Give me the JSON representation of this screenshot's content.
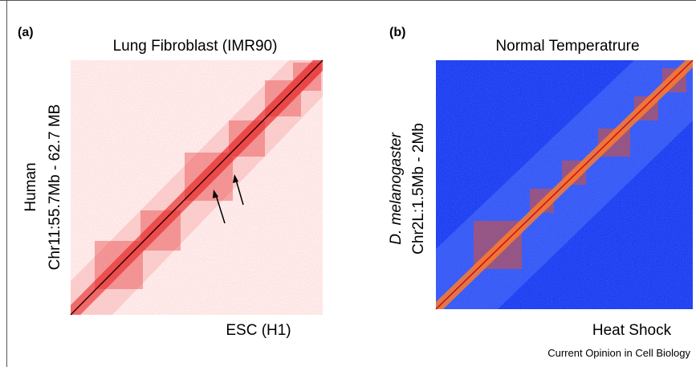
{
  "panels": [
    {
      "label": "(a)",
      "title": "Lung Fibroblast (IMR90)",
      "y_labels": [
        "Human",
        "Chr11:55.7Mb - 62.7 MB"
      ],
      "x_label": "ESC (H1)"
    },
    {
      "label": "(b)",
      "title": "Normal Temperatrure",
      "y_labels": [
        "D. melanogaster",
        "Chr2L:1.5Mb - 2Mb"
      ],
      "x_label": "Heat Shock"
    }
  ],
  "footer": "Current Opinion in Cell Biology"
}
